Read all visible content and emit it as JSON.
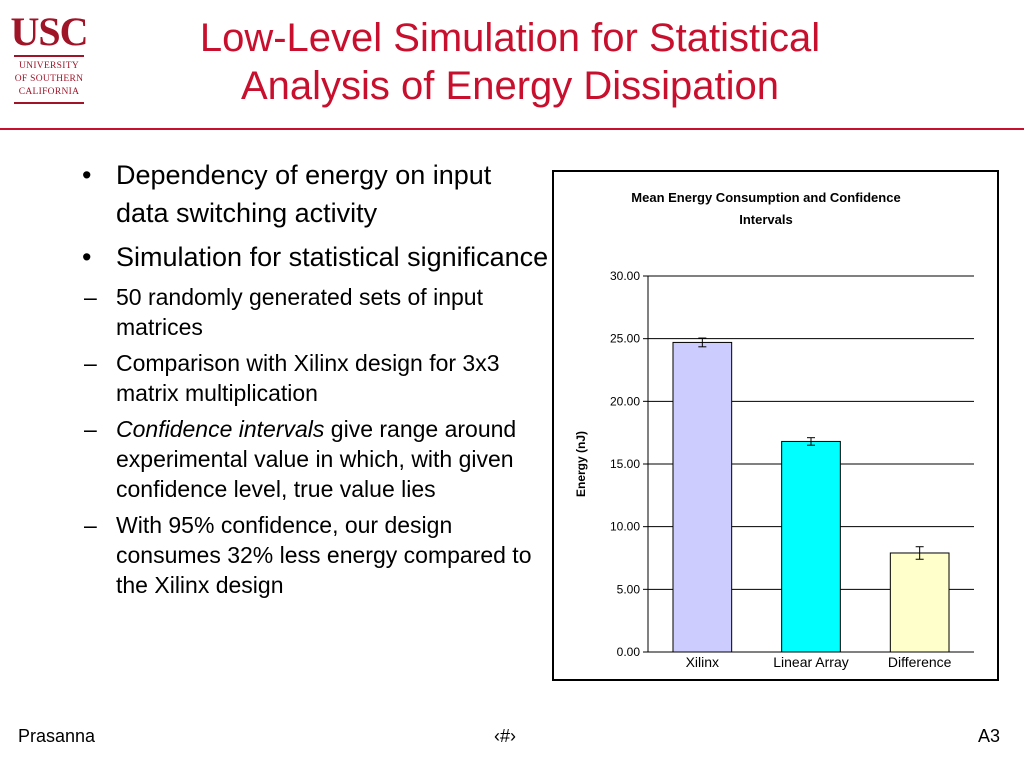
{
  "logo": {
    "mark": "USC",
    "line1": "UNIVERSITY",
    "line2": "OF SOUTHERN",
    "line3": "CALIFORNIA"
  },
  "title": {
    "line1": "Low-Level Simulation for Statistical",
    "line2": "Analysis of Energy Dissipation"
  },
  "bullets": [
    {
      "text": "Dependency of energy on input data switching activity"
    },
    {
      "text": "Simulation for statistical significance"
    }
  ],
  "sub_bullets": [
    {
      "text": "50 randomly generated sets of input matrices"
    },
    {
      "text": "Comparison with Xilinx design for 3x3 matrix multiplication"
    },
    {
      "italic": "Confidence intervals",
      "rest": " give range around experimental value in which, with given confidence level, true value lies"
    },
    {
      "text": "With 95% confidence, our design consumes 32% less energy compared to the Xilinx design"
    }
  ],
  "bullet_symbol": "•",
  "dash_symbol": "–",
  "footer": {
    "left": "Prasanna",
    "middle": "‹#›",
    "right": "A3"
  },
  "chart_data": {
    "type": "bar",
    "title_lines": [
      "Mean Energy Consumption and Confidence",
      "Intervals"
    ],
    "xlabel": "",
    "ylabel": "Energy (nJ)",
    "categories": [
      "Xilinx",
      "Linear Array",
      "Difference"
    ],
    "values": [
      24.7,
      16.8,
      7.9
    ],
    "error": [
      0.35,
      0.3,
      0.5
    ],
    "bar_colors": [
      "#ccccff",
      "#00ffff",
      "#ffffcc"
    ],
    "ylim": [
      0,
      30
    ],
    "yticks": [
      "0.00",
      "5.00",
      "10.00",
      "15.00",
      "20.00",
      "25.00",
      "30.00"
    ],
    "grid": true,
    "legend": "none"
  }
}
